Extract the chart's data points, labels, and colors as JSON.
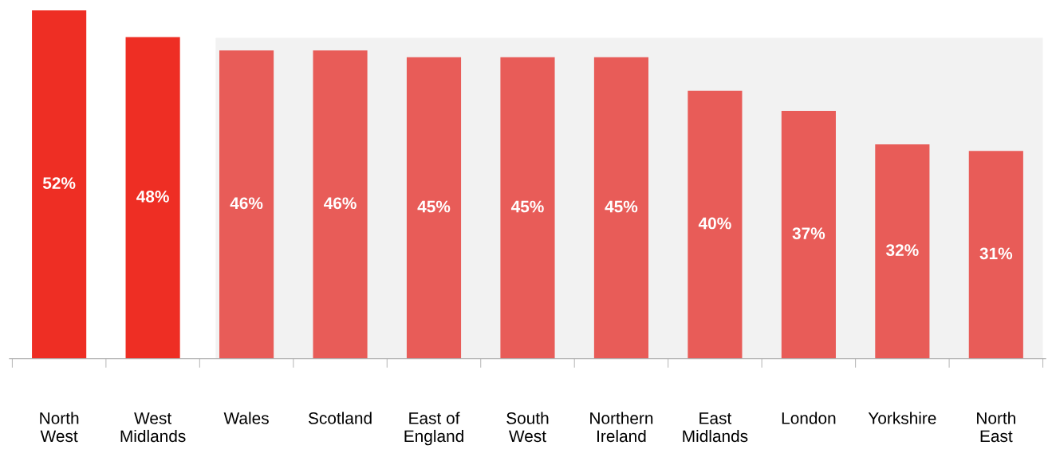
{
  "chart_data": {
    "type": "bar",
    "categories": [
      "North West",
      "West Midlands",
      "Wales",
      "Scotland",
      "East of England",
      "South West",
      "Northern Ireland",
      "East Midlands",
      "London",
      "Yorkshire",
      "North East"
    ],
    "values": [
      52,
      48,
      46,
      46,
      45,
      45,
      45,
      40,
      37,
      32,
      31
    ],
    "colors": [
      "#ee2e24",
      "#ee2e24",
      "#e85c58",
      "#e85c58",
      "#e85c58",
      "#e85c58",
      "#e85c58",
      "#e85c58",
      "#e85c58",
      "#e85c58",
      "#e85c58"
    ],
    "value_labels": [
      "52%",
      "48%",
      "46%",
      "46%",
      "45%",
      "45%",
      "45%",
      "40%",
      "37%",
      "32%",
      "31%"
    ],
    "bands": [
      {
        "axis": "x",
        "from": "Wales",
        "to": "North East",
        "label": null,
        "color": "#f2f2f2"
      }
    ],
    "grid": false,
    "legend": false
  }
}
